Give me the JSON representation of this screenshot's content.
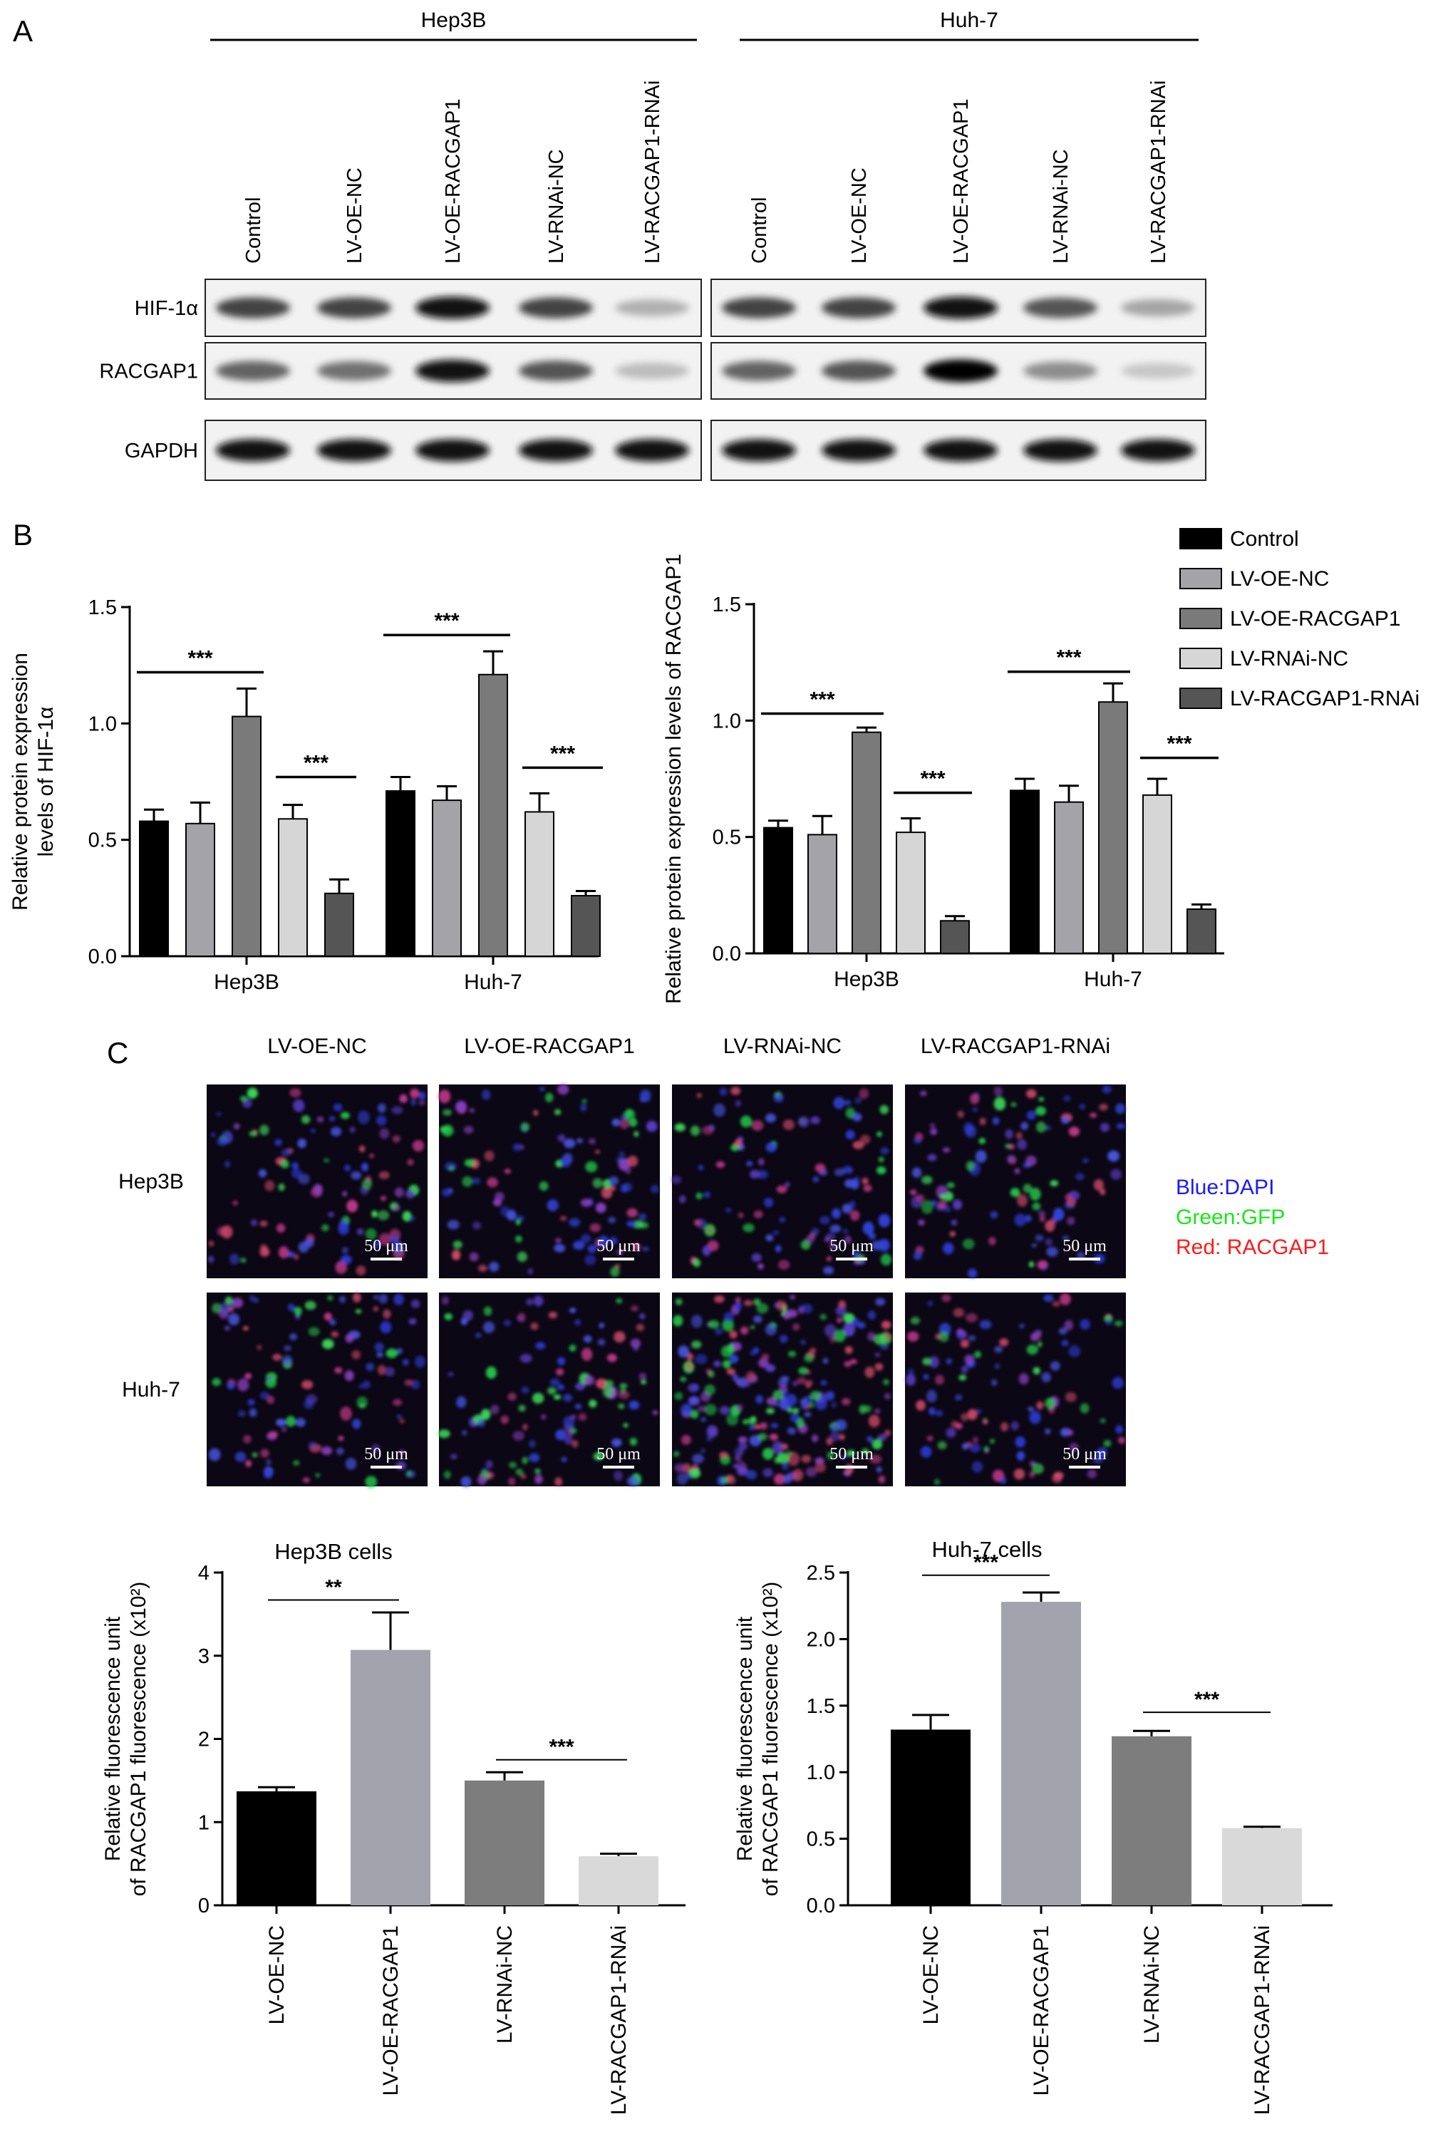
{
  "panel_a": {
    "letter": "A",
    "groups": [
      {
        "name": "Hep3B",
        "lanes": [
          "Control",
          "LV-OE-NC",
          "LV-OE-RACGAP1",
          "LV-RNAi-NC",
          "LV-RACGAP1-RNAi"
        ]
      },
      {
        "name": "Huh-7",
        "lanes": [
          "Control",
          "LV-OE-NC",
          "LV-OE-RACGAP1",
          "LV-RNAi-NC",
          "LV-RACGAP1-RNAi"
        ]
      }
    ],
    "proteins": [
      "HIF-1α",
      "RACGAP1",
      "GAPDH"
    ],
    "band_intensity": [
      [
        [
          0.8,
          0.8,
          0.95,
          0.8,
          0.4
        ],
        [
          0.8,
          0.8,
          0.95,
          0.75,
          0.45
        ]
      ],
      [
        [
          0.7,
          0.65,
          0.95,
          0.75,
          0.35
        ],
        [
          0.7,
          0.75,
          1.0,
          0.55,
          0.3
        ]
      ],
      [
        [
          0.95,
          0.95,
          0.95,
          0.95,
          0.95
        ],
        [
          0.95,
          0.95,
          0.95,
          0.95,
          0.95
        ]
      ]
    ]
  },
  "panel_b_letter": "B",
  "panel_c": {
    "letter": "C",
    "columns": [
      "LV-OE-NC",
      "LV-OE-RACGAP1",
      "LV-RNAi-NC",
      "LV-RACGAP1-RNAi"
    ],
    "rows": [
      "Hep3B",
      "Huh-7"
    ],
    "scale_label": "50 μm",
    "legend": [
      {
        "text": "Blue:DAPI",
        "color": "#1a1aff"
      },
      {
        "text": "Green:GFP",
        "color": "#19e619"
      },
      {
        "text": "Red: RACGAP1",
        "color": "#ff1a1a"
      }
    ]
  },
  "chart_data": [
    {
      "type": "bar",
      "id": "b-left",
      "categories": [
        "Hep3B",
        "Huh-7"
      ],
      "ylabel": [
        "Relative protein expression",
        "levels of HIF-1α"
      ],
      "ylim": [
        0,
        1.5
      ],
      "yticks": [
        "0.0",
        "0.5",
        "1.0",
        "1.5"
      ],
      "series": [
        {
          "name": "Control",
          "color": "#000000",
          "values": [
            0.58,
            0.71
          ],
          "errors": [
            0.05,
            0.06
          ]
        },
        {
          "name": "LV-OE-NC",
          "color": "#a3a3a8",
          "values": [
            0.57,
            0.67
          ],
          "errors": [
            0.09,
            0.06
          ]
        },
        {
          "name": "LV-OE-RACGAP1",
          "color": "#7a7a7a",
          "values": [
            1.03,
            1.21
          ],
          "errors": [
            0.12,
            0.1
          ]
        },
        {
          "name": "LV-RNAi-NC",
          "color": "#d6d6d6",
          "values": [
            0.59,
            0.62
          ],
          "errors": [
            0.06,
            0.08
          ]
        },
        {
          "name": "LV-RACGAP1-RNAi",
          "color": "#555555",
          "values": [
            0.27,
            0.26
          ],
          "errors": [
            0.06,
            0.02
          ]
        }
      ],
      "significance": [
        {
          "category": 0,
          "from": 0,
          "to": 2,
          "label": "***",
          "y": 1.22
        },
        {
          "category": 0,
          "from": 3,
          "to": 4,
          "label": "***",
          "y": 0.77
        },
        {
          "category": 1,
          "from": 0,
          "to": 2,
          "label": "***",
          "y": 1.38
        },
        {
          "category": 1,
          "from": 3,
          "to": 4,
          "label": "***",
          "y": 0.81
        }
      ]
    },
    {
      "type": "bar",
      "id": "b-right",
      "categories": [
        "Hep3B",
        "Huh-7"
      ],
      "ylabel": [
        "Relative protein expression levels of RACGAP1"
      ],
      "ylim": [
        0,
        1.5
      ],
      "yticks": [
        "0.0",
        "0.5",
        "1.0",
        "1.5"
      ],
      "legend_position": "top-right",
      "series": [
        {
          "name": "Control",
          "color": "#000000",
          "values": [
            0.54,
            0.7
          ],
          "errors": [
            0.03,
            0.05
          ]
        },
        {
          "name": "LV-OE-NC",
          "color": "#a3a3a8",
          "values": [
            0.51,
            0.65
          ],
          "errors": [
            0.08,
            0.07
          ]
        },
        {
          "name": "LV-OE-RACGAP1",
          "color": "#7a7a7a",
          "values": [
            0.95,
            1.08
          ],
          "errors": [
            0.02,
            0.08
          ]
        },
        {
          "name": "LV-RNAi-NC",
          "color": "#d6d6d6",
          "values": [
            0.52,
            0.68
          ],
          "errors": [
            0.06,
            0.07
          ]
        },
        {
          "name": "LV-RACGAP1-RNAi",
          "color": "#555555",
          "values": [
            0.14,
            0.19
          ],
          "errors": [
            0.02,
            0.02
          ]
        }
      ],
      "significance": [
        {
          "category": 0,
          "from": 0,
          "to": 2,
          "label": "***",
          "y": 1.03
        },
        {
          "category": 0,
          "from": 3,
          "to": 4,
          "label": "***",
          "y": 0.69
        },
        {
          "category": 1,
          "from": 0,
          "to": 2,
          "label": "***",
          "y": 1.21
        },
        {
          "category": 1,
          "from": 3,
          "to": 4,
          "label": "***",
          "y": 0.84
        }
      ]
    },
    {
      "type": "bar",
      "id": "c-left",
      "title": "Hep3B cells",
      "categories": [
        "LV-OE-NC",
        "LV-OE-RACGAP1",
        "LV-RNAi-NC",
        "LV-RACGAP1-RNAi"
      ],
      "ylabel": [
        "Relative fluorescence unit",
        "of RACGAP1 fluorescence (x10²)"
      ],
      "ylim": [
        0,
        4
      ],
      "yticks": [
        "0",
        "1",
        "2",
        "3",
        "4"
      ],
      "colors": [
        "#000000",
        "#a3a3ad",
        "#7d7d7d",
        "#d9d9d9"
      ],
      "values": [
        1.37,
        3.07,
        1.5,
        0.59
      ],
      "errors": [
        0.05,
        0.45,
        0.1,
        0.03
      ],
      "significance": [
        {
          "from": 0,
          "to": 1,
          "label": "**",
          "y": 3.67
        },
        {
          "from": 2,
          "to": 3,
          "label": "***",
          "y": 1.75
        }
      ]
    },
    {
      "type": "bar",
      "id": "c-right",
      "title": "Huh-7 cells",
      "categories": [
        "LV-OE-NC",
        "LV-OE-RACGAP1",
        "LV-RNAi-NC",
        "LV-RACGAP1-RNAi"
      ],
      "ylabel": [
        "Relative fluorescence unit",
        "of RACGAP1 fluorescence (x10²)"
      ],
      "ylim": [
        0,
        2.5
      ],
      "yticks": [
        "0.0",
        "0.5",
        "1.0",
        "1.5",
        "2.0",
        "2.5"
      ],
      "colors": [
        "#000000",
        "#a3a3ad",
        "#7d7d7d",
        "#d9d9d9"
      ],
      "values": [
        1.32,
        2.28,
        1.27,
        0.58
      ],
      "errors": [
        0.11,
        0.07,
        0.04,
        0.01
      ],
      "significance": [
        {
          "from": 0,
          "to": 1,
          "label": "***",
          "y": 2.48
        },
        {
          "from": 2,
          "to": 3,
          "label": "***",
          "y": 1.45
        }
      ]
    }
  ]
}
